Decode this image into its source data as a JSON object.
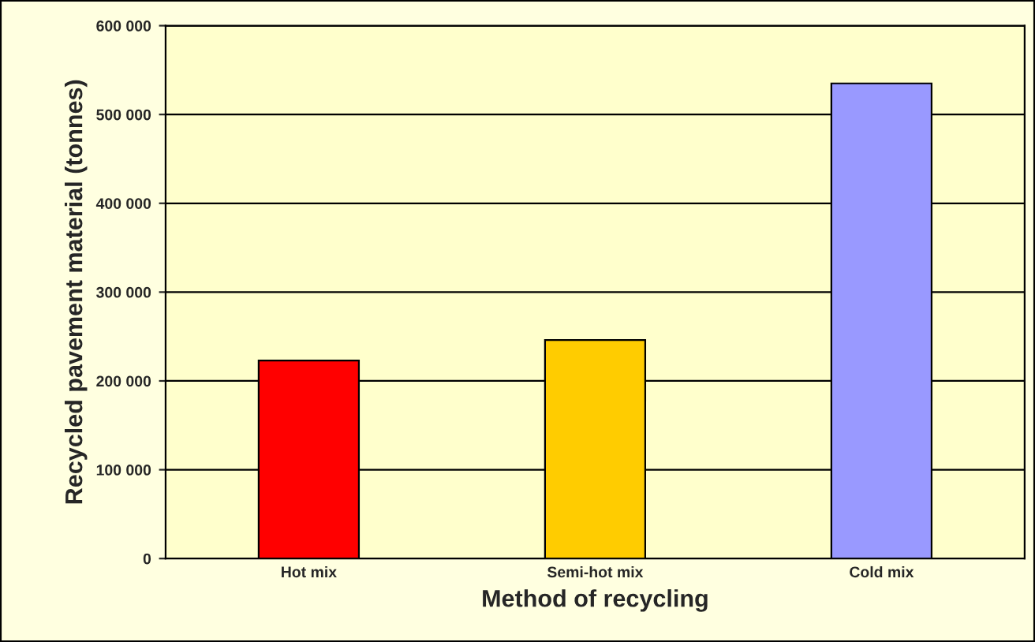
{
  "chart_data": {
    "type": "bar",
    "xlabel": "Method of recycling",
    "ylabel": "Recycled pavement material (tonnes)",
    "categories": [
      "Hot mix",
      "Semi-hot mix",
      "Cold mix"
    ],
    "values": [
      223000,
      246000,
      535000
    ],
    "colors": [
      "#ff0000",
      "#ffcc00",
      "#9999ff"
    ],
    "ylim": [
      0,
      600000
    ],
    "yticks": [
      {
        "value": 0,
        "label": "0"
      },
      {
        "value": 100000,
        "label": "100 000"
      },
      {
        "value": 200000,
        "label": "200 000"
      },
      {
        "value": 300000,
        "label": "300 000"
      },
      {
        "value": 400000,
        "label": "400 000"
      },
      {
        "value": 500000,
        "label": "500 000"
      },
      {
        "value": 600000,
        "label": "600 000"
      }
    ],
    "grid": "y",
    "legend": false
  }
}
